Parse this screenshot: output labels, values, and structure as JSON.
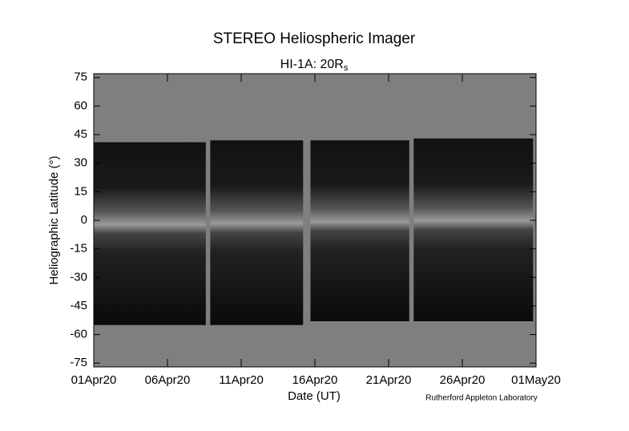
{
  "chart_data": {
    "type": "jmap",
    "title": "STEREO Heliospheric Imager",
    "subtitle": "HI-1A: 20R",
    "subtitle_subscript": "s",
    "xlabel": "Date (UT)",
    "ylabel": "Heliographic Latitude (°)",
    "credit": "Rutherford Appleton Laboratory",
    "xlim": [
      0,
      30
    ],
    "xticks": [
      {
        "value": 0,
        "label": "01Apr20"
      },
      {
        "value": 5,
        "label": "06Apr20"
      },
      {
        "value": 10,
        "label": "11Apr20"
      },
      {
        "value": 15,
        "label": "16Apr20"
      },
      {
        "value": 20,
        "label": "21Apr20"
      },
      {
        "value": 25,
        "label": "26Apr20"
      },
      {
        "value": 30,
        "label": "01May20"
      }
    ],
    "ylim": [
      -77,
      77
    ],
    "yticks": [
      -75,
      -60,
      -45,
      -30,
      -15,
      0,
      15,
      30,
      45,
      60,
      75
    ],
    "background_color": "#7f7f7f",
    "strips": [
      {
        "start": 0,
        "end": 7.6,
        "lat_top": 41,
        "lat_bottom": -55
      },
      {
        "start": 7.9,
        "end": 14.2,
        "lat_top": 42,
        "lat_bottom": -55
      },
      {
        "start": 14.7,
        "end": 21.4,
        "lat_top": 42,
        "lat_bottom": -53
      },
      {
        "start": 21.7,
        "end": 29.8,
        "lat_top": 43,
        "lat_bottom": -53
      }
    ]
  }
}
